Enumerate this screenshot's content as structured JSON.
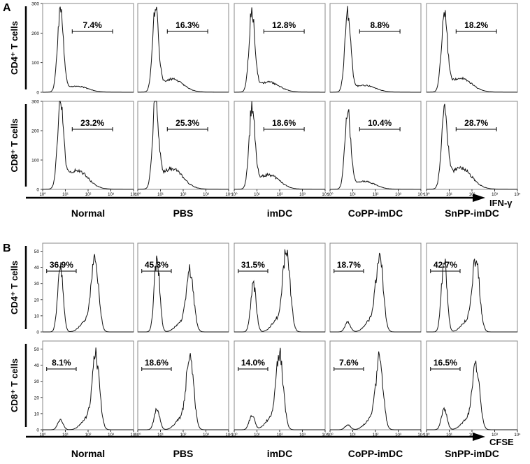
{
  "chart_data": {
    "type": "area",
    "panels": [
      {
        "label": "A",
        "marker": "IFN-γ",
        "columns": [
          "Normal",
          "PBS",
          "imDC",
          "CoPP-imDC",
          "SnPP-imDC"
        ],
        "x_ticks": [
          "10⁰",
          "10¹",
          "10²",
          "10³",
          "10⁴"
        ],
        "x_scale": "log",
        "xlim": [
          1,
          10000
        ],
        "rows": [
          {
            "cell_type": "CD4⁺ T cells",
            "y_ticks": [
              "0",
              "100",
              "200",
              "300"
            ],
            "ylim": [
              0,
              300
            ],
            "gate_x": [
              20,
              1200
            ],
            "percentages": [
              "7.4%",
              "16.3%",
              "12.8%",
              "8.8%",
              "18.2%"
            ],
            "peak_counts": [
              265,
              260,
              255,
              255,
              250
            ]
          },
          {
            "cell_type": "CD8⁺ T cells",
            "y_ticks": [
              "0",
              "100",
              "200",
              "300"
            ],
            "ylim": [
              0,
              300
            ],
            "gate_x": [
              20,
              1200
            ],
            "percentages": [
              "23.2%",
              "25.3%",
              "18.6%",
              "10.4%",
              "28.7%"
            ],
            "peak_counts": [
              270,
              265,
              255,
              250,
              245
            ]
          }
        ]
      },
      {
        "label": "B",
        "marker": "CFSE",
        "columns": [
          "Normal",
          "PBS",
          "imDC",
          "CoPP-imDC",
          "SnPP-imDC"
        ],
        "x_ticks": [
          "10⁰",
          "10¹",
          "10²",
          "10³",
          "10⁴"
        ],
        "x_scale": "log",
        "xlim": [
          1,
          10000
        ],
        "rows": [
          {
            "cell_type": "CD4⁺ T cells",
            "y_ticks": [
              "0",
              "10",
              "20",
              "30",
              "40",
              "50"
            ],
            "ylim": [
              0,
              55
            ],
            "gate_x": [
              1.5,
              30
            ],
            "percentages": [
              "36.9%",
              "45.3%",
              "31.5%",
              "18.7%",
              "42.7%"
            ],
            "peaks": [
              [
                {
                  "x": 6,
                  "y": 40
                },
                {
                  "x": 200,
                  "y": 44
                }
              ],
              [
                {
                  "x": 7,
                  "y": 46
                },
                {
                  "x": 200,
                  "y": 36
                }
              ],
              [
                {
                  "x": 7,
                  "y": 29
                },
                {
                  "x": 200,
                  "y": 49
                }
              ],
              [
                {
                  "x": 6,
                  "y": 6
                },
                {
                  "x": 150,
                  "y": 46
                }
              ],
              [
                {
                  "x": 6,
                  "y": 45
                },
                {
                  "x": 150,
                  "y": 43
                }
              ]
            ]
          },
          {
            "cell_type": "CD8⁺ T cells",
            "y_ticks": [
              "0",
              "10",
              "20",
              "30",
              "40",
              "50"
            ],
            "ylim": [
              0,
              55
            ],
            "gate_x": [
              1.5,
              30
            ],
            "percentages": [
              "8.1%",
              "18.6%",
              "14.0%",
              "7.6%",
              "16.5%"
            ],
            "peaks": [
              [
                {
                  "x": 6,
                  "y": 6
                },
                {
                  "x": 220,
                  "y": 44
                }
              ],
              [
                {
                  "x": 7,
                  "y": 13
                },
                {
                  "x": 200,
                  "y": 45
                }
              ],
              [
                {
                  "x": 6,
                  "y": 9
                },
                {
                  "x": 100,
                  "y": 45
                }
              ],
              [
                {
                  "x": 6,
                  "y": 3
                },
                {
                  "x": 150,
                  "y": 42
                }
              ],
              [
                {
                  "x": 6,
                  "y": 13
                },
                {
                  "x": 150,
                  "y": 39
                }
              ]
            ]
          }
        ]
      }
    ]
  }
}
